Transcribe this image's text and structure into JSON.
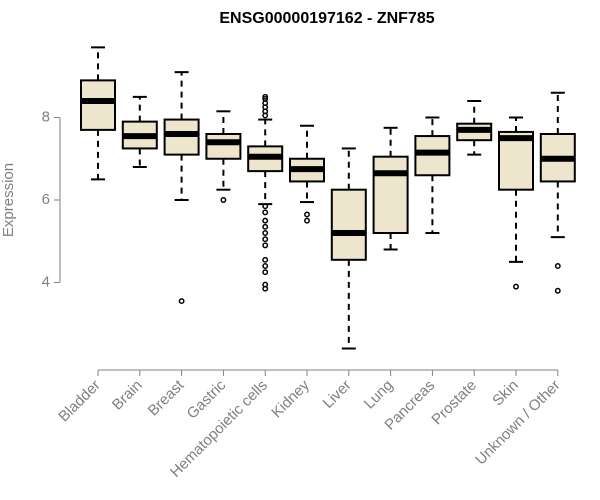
{
  "chart_data": {
    "type": "boxplot",
    "title": "ENSG00000197162 - ZNF785",
    "xlabel": "",
    "ylabel": "Expression",
    "ylim": [
      2.0,
      10.0
    ],
    "yticks": [
      4,
      6,
      8
    ],
    "grid": false,
    "legend": "none",
    "colors": {
      "box_fill": "#ede5cc",
      "box_stroke": "#000000",
      "axis": "#808080",
      "text": "#808080",
      "title": "#000000"
    },
    "categories": [
      "Bladder",
      "Brain",
      "Breast",
      "Gastric",
      "Hematopoietic cells",
      "Kidney",
      "Liver",
      "Lung",
      "Pancreas",
      "Prostate",
      "Skin",
      "Unknown / Other"
    ],
    "boxes": [
      {
        "name": "Bladder",
        "whisker_low": 6.5,
        "q1": 7.7,
        "median": 8.4,
        "q3": 8.9,
        "whisker_high": 9.7,
        "outliers": []
      },
      {
        "name": "Brain",
        "whisker_low": 6.8,
        "q1": 7.25,
        "median": 7.55,
        "q3": 7.9,
        "whisker_high": 8.5,
        "outliers": []
      },
      {
        "name": "Breast",
        "whisker_low": 6.0,
        "q1": 7.1,
        "median": 7.6,
        "q3": 7.95,
        "whisker_high": 9.1,
        "outliers": [
          3.55
        ]
      },
      {
        "name": "Gastric",
        "whisker_low": 6.25,
        "q1": 7.0,
        "median": 7.4,
        "q3": 7.6,
        "whisker_high": 8.15,
        "outliers": [
          6.0
        ]
      },
      {
        "name": "Hematopoietic cells",
        "whisker_low": 5.9,
        "q1": 6.7,
        "median": 7.05,
        "q3": 7.3,
        "whisker_high": 7.95,
        "outliers": [
          8.05,
          8.15,
          8.25,
          8.35,
          8.45,
          8.5,
          5.85,
          5.7,
          5.5,
          5.35,
          5.2,
          5.05,
          4.9,
          4.55,
          4.4,
          4.25,
          3.95,
          3.85
        ]
      },
      {
        "name": "Kidney",
        "whisker_low": 5.95,
        "q1": 6.45,
        "median": 6.75,
        "q3": 7.0,
        "whisker_high": 7.8,
        "outliers": [
          5.65,
          5.5
        ]
      },
      {
        "name": "Liver",
        "whisker_low": 2.4,
        "q1": 4.55,
        "median": 5.2,
        "q3": 6.25,
        "whisker_high": 7.25,
        "outliers": []
      },
      {
        "name": "Lung",
        "whisker_low": 4.8,
        "q1": 5.2,
        "median": 6.65,
        "q3": 7.05,
        "whisker_high": 7.75,
        "outliers": []
      },
      {
        "name": "Pancreas",
        "whisker_low": 5.2,
        "q1": 6.6,
        "median": 7.15,
        "q3": 7.55,
        "whisker_high": 8.0,
        "outliers": []
      },
      {
        "name": "Prostate",
        "whisker_low": 7.1,
        "q1": 7.45,
        "median": 7.7,
        "q3": 7.85,
        "whisker_high": 8.4,
        "outliers": []
      },
      {
        "name": "Skin",
        "whisker_low": 4.5,
        "q1": 6.25,
        "median": 7.5,
        "q3": 7.65,
        "whisker_high": 8.0,
        "outliers": [
          3.9
        ]
      },
      {
        "name": "Unknown / Other",
        "whisker_low": 5.1,
        "q1": 6.45,
        "median": 7.0,
        "q3": 7.6,
        "whisker_high": 8.6,
        "outliers": [
          4.4,
          3.8
        ]
      }
    ]
  }
}
